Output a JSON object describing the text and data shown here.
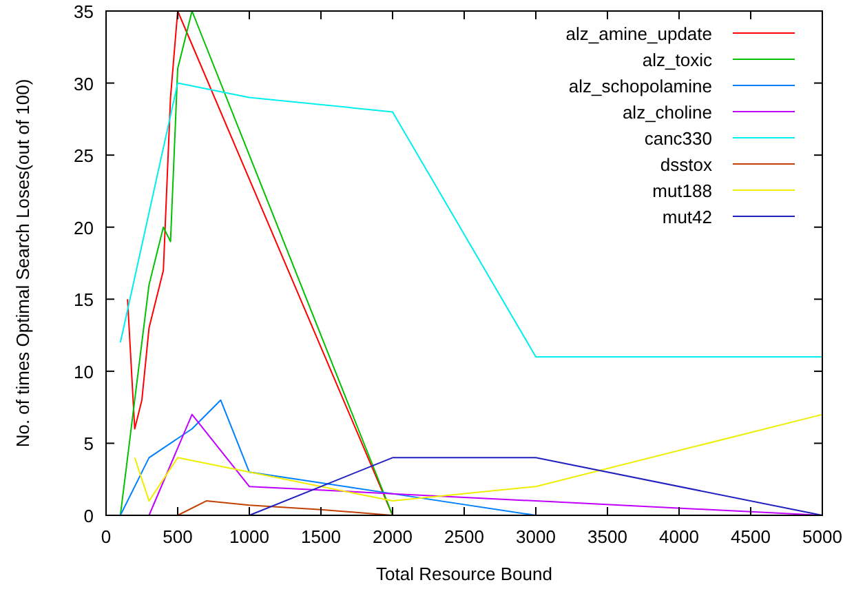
{
  "chart_data": {
    "type": "line",
    "xlabel": "Total Resource Bound",
    "ylabel": "No. of times Optimal Search Loses(out of 100)",
    "xlim": [
      0,
      5000
    ],
    "ylim": [
      0,
      35
    ],
    "xticks": [
      0,
      500,
      1000,
      1500,
      2000,
      2500,
      3000,
      3500,
      4000,
      4500,
      5000
    ],
    "yticks": [
      0,
      5,
      10,
      15,
      20,
      25,
      30,
      35
    ],
    "grid": false,
    "legend": "top right",
    "series": [
      {
        "name": "alz_amine_update",
        "color": "#ff0000",
        "x": [
          150,
          200,
          250,
          300,
          400,
          450,
          500,
          2000
        ],
        "values": [
          15,
          6,
          8,
          13,
          17,
          29,
          35,
          0
        ]
      },
      {
        "name": "alz_toxic",
        "color": "#00c000",
        "x": [
          100,
          200,
          300,
          400,
          450,
          500,
          600,
          2000
        ],
        "values": [
          0,
          8,
          16,
          20,
          19,
          31,
          35,
          0
        ]
      },
      {
        "name": "alz_schopolamine",
        "color": "#0080ff",
        "x": [
          100,
          300,
          600,
          800,
          1000,
          2000,
          3000
        ],
        "values": [
          0,
          4,
          6,
          8,
          3,
          1.5,
          0
        ]
      },
      {
        "name": "alz_choline",
        "color": "#c000ff",
        "x": [
          300,
          600,
          1000,
          2000,
          3000,
          5000
        ],
        "values": [
          0,
          7,
          2,
          1.5,
          1,
          0
        ]
      },
      {
        "name": "canc330",
        "color": "#00eeee",
        "x": [
          100,
          500,
          1000,
          2000,
          3000,
          5000
        ],
        "values": [
          12,
          30,
          29,
          28,
          11,
          11
        ]
      },
      {
        "name": "dsstox",
        "color": "#c04000",
        "x": [
          500,
          700,
          1000,
          1500,
          2000
        ],
        "values": [
          0,
          1,
          0.7,
          0.4,
          0
        ]
      },
      {
        "name": "mut188",
        "color": "#eeee00",
        "x": [
          200,
          300,
          500,
          2000,
          3000,
          5000
        ],
        "values": [
          4,
          1,
          4,
          1,
          2,
          7
        ]
      },
      {
        "name": "mut42",
        "color": "#2020c0",
        "x": [
          1000,
          2000,
          3000,
          5000
        ],
        "values": [
          0,
          4,
          4,
          0
        ]
      }
    ]
  }
}
